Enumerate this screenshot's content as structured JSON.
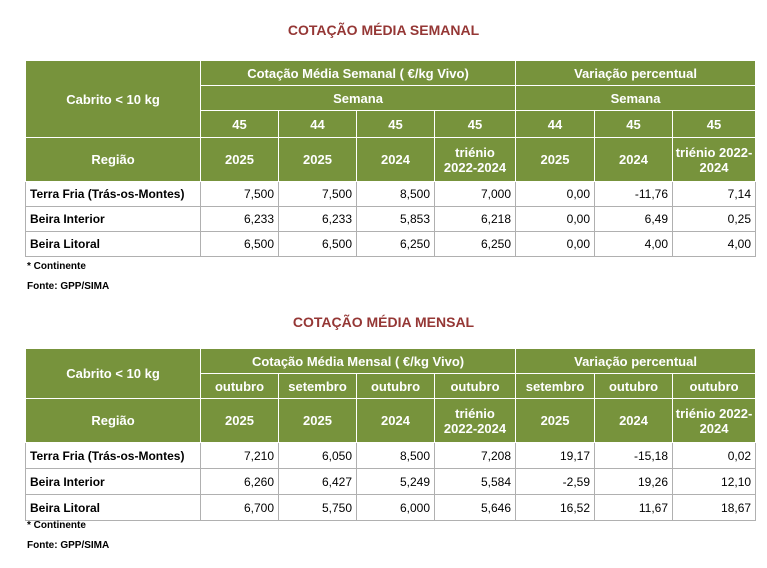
{
  "tables": [
    {
      "title": "COTAÇÃO MÉDIA SEMANAL",
      "corner": "Cabrito < 10 kg",
      "group_price": "Cotação Média Semanal ( €/kg Vivo)",
      "group_change": "Variação percentual",
      "sub_price": "Semana",
      "sub_change": "Semana",
      "period_row": [
        "45",
        "44",
        "45",
        "45",
        "44",
        "45",
        "45"
      ],
      "region_label": "Região",
      "year_row": [
        "2025",
        "2025",
        "2024",
        "triénio 2022-2024",
        "2025",
        "2024",
        "triénio 2022-2024"
      ],
      "rows": [
        [
          "Terra Fria (Trás-os-Montes)",
          "7,500",
          "7,500",
          "8,500",
          "7,000",
          "0,00",
          "-11,76",
          "7,14"
        ],
        [
          "Beira Interior",
          "6,233",
          "6,233",
          "5,853",
          "6,218",
          "0,00",
          "6,49",
          "0,25"
        ],
        [
          "Beira Litoral",
          "6,500",
          "6,500",
          "6,250",
          "6,250",
          "0,00",
          "4,00",
          "4,00"
        ]
      ],
      "notes": [
        "* Continente",
        "Fonte: GPP/SIMA"
      ]
    },
    {
      "title": "COTAÇÃO MÉDIA MENSAL",
      "corner": "Cabrito < 10 kg",
      "group_price": "Cotação Média Mensal ( €/kg Vivo)",
      "group_change": "Variação percentual",
      "period_row": [
        "outubro",
        "setembro",
        "outubro",
        "outubro",
        "setembro",
        "outubro",
        "outubro"
      ],
      "region_label": "Região",
      "year_row": [
        "2025",
        "2025",
        "2024",
        "triénio 2022-2024",
        "2025",
        "2024",
        "triénio 2022-2024"
      ],
      "rows": [
        [
          "Terra Fria (Trás-os-Montes)",
          "7,210",
          "6,050",
          "8,500",
          "7,208",
          "19,17",
          "-15,18",
          "0,02"
        ],
        [
          "Beira Interior",
          "6,260",
          "6,427",
          "5,249",
          "5,584",
          "-2,59",
          "19,26",
          "12,10"
        ],
        [
          "Beira Litoral",
          "6,700",
          "5,750",
          "6,000",
          "5,646",
          "16,52",
          "11,67",
          "18,67"
        ]
      ],
      "notes": [
        "* Continente",
        "Fonte: GPP/SIMA"
      ]
    }
  ]
}
